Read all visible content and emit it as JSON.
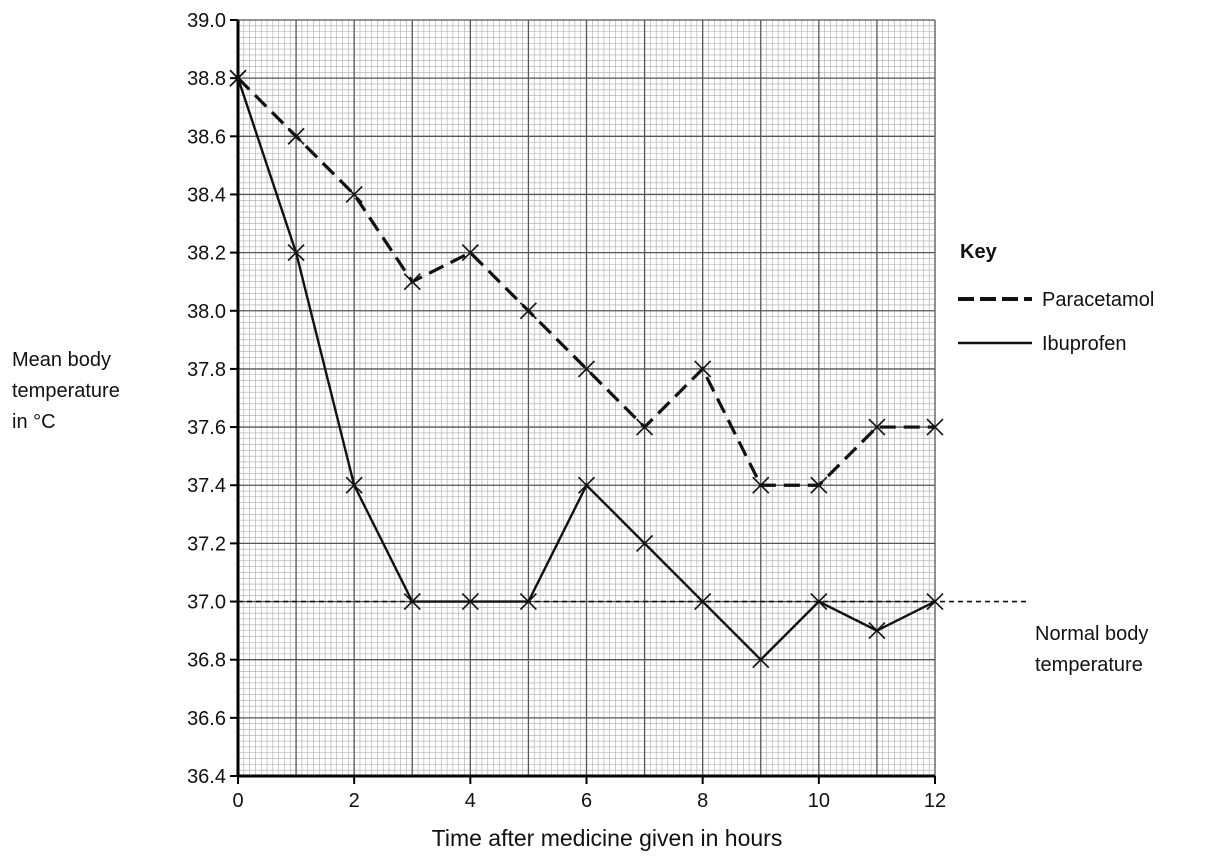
{
  "chart_data": {
    "type": "line",
    "xlabel": "Time after medicine given in hours",
    "ylabel_lines": [
      "Mean body",
      "temperature",
      "in °C"
    ],
    "xlim": [
      0,
      12
    ],
    "ylim": [
      36.4,
      39.0
    ],
    "x_ticks": [
      0,
      2,
      4,
      6,
      8,
      10,
      12
    ],
    "x_tick_labels": [
      "0",
      "2",
      "4",
      "6",
      "8",
      "10",
      "12"
    ],
    "y_ticks": [
      36.4,
      36.6,
      36.8,
      37.0,
      37.2,
      37.4,
      37.6,
      37.8,
      38.0,
      38.2,
      38.4,
      38.6,
      38.8,
      39.0
    ],
    "y_tick_labels": [
      "36.4",
      "36.6",
      "36.8",
      "37.0",
      "37.2",
      "37.4",
      "37.6",
      "37.8",
      "38.0",
      "38.2",
      "38.4",
      "38.6",
      "38.8",
      "39.0"
    ],
    "grid": true,
    "legend": {
      "title": "Key",
      "position": "right",
      "entries": [
        {
          "name": "Paracetamol",
          "style": "dashed"
        },
        {
          "name": "Ibuprofen",
          "style": "solid"
        }
      ]
    },
    "series": [
      {
        "name": "Paracetamol",
        "style": "dashed",
        "marker": "x",
        "x": [
          0,
          1,
          2,
          3,
          4,
          5,
          6,
          7,
          8,
          9,
          10,
          11,
          12
        ],
        "y": [
          38.8,
          38.6,
          38.4,
          38.1,
          38.2,
          38.0,
          37.8,
          37.6,
          37.8,
          37.4,
          37.4,
          37.6,
          37.6
        ]
      },
      {
        "name": "Ibuprofen",
        "style": "solid",
        "marker": "x",
        "x": [
          0,
          1,
          2,
          3,
          4,
          5,
          6,
          7,
          8,
          9,
          10,
          11,
          12
        ],
        "y": [
          38.8,
          38.2,
          37.4,
          37.0,
          37.0,
          37.0,
          37.4,
          37.2,
          37.0,
          36.8,
          37.0,
          36.9,
          37.0
        ]
      }
    ],
    "reference_line": {
      "y": 37.0,
      "label_lines": [
        "Normal body",
        "temperature"
      ]
    }
  }
}
